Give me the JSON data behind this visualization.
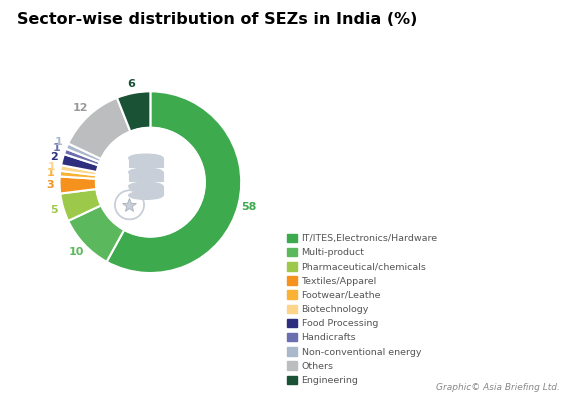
{
  "title": "Sector-wise distribution of SEZs in India (%)",
  "title_fontsize": 11.5,
  "labels": [
    "IT/ITES,Electronics/Hardware",
    "Multi-product",
    "Pharmaceutical/chemicals",
    "Textiles/Apparel",
    "Footwear/Leathe",
    "Biotechnology",
    "Food Processing",
    "Handicrafts",
    "Non-conventional energy",
    "Others",
    "Engineering"
  ],
  "values": [
    58,
    10,
    5,
    3,
    1,
    1,
    2,
    1,
    1,
    12,
    6
  ],
  "colors": [
    "#3daa4e",
    "#5cb85c",
    "#9dc94a",
    "#f5921e",
    "#f9b233",
    "#fcd48a",
    "#2d2f7e",
    "#6b6faf",
    "#abb8cc",
    "#bbbdbe",
    "#1a5235"
  ],
  "pct_labels": [
    "58",
    "10",
    "5",
    "3",
    "1",
    "1",
    "2",
    "1",
    "1",
    "12",
    "6"
  ],
  "pct_colors": [
    "#3daa4e",
    "#5cb85c",
    "#9dc94a",
    "#f5921e",
    "#f9b233",
    "#fcd48a",
    "#2d2f7e",
    "#6b6faf",
    "#abb8cc",
    "#999999",
    "#1a5235"
  ],
  "watermark_text": "Graphic© Asia Briefing Ltd.",
  "background_color": "#ffffff",
  "db_color": "#c8cfd8"
}
